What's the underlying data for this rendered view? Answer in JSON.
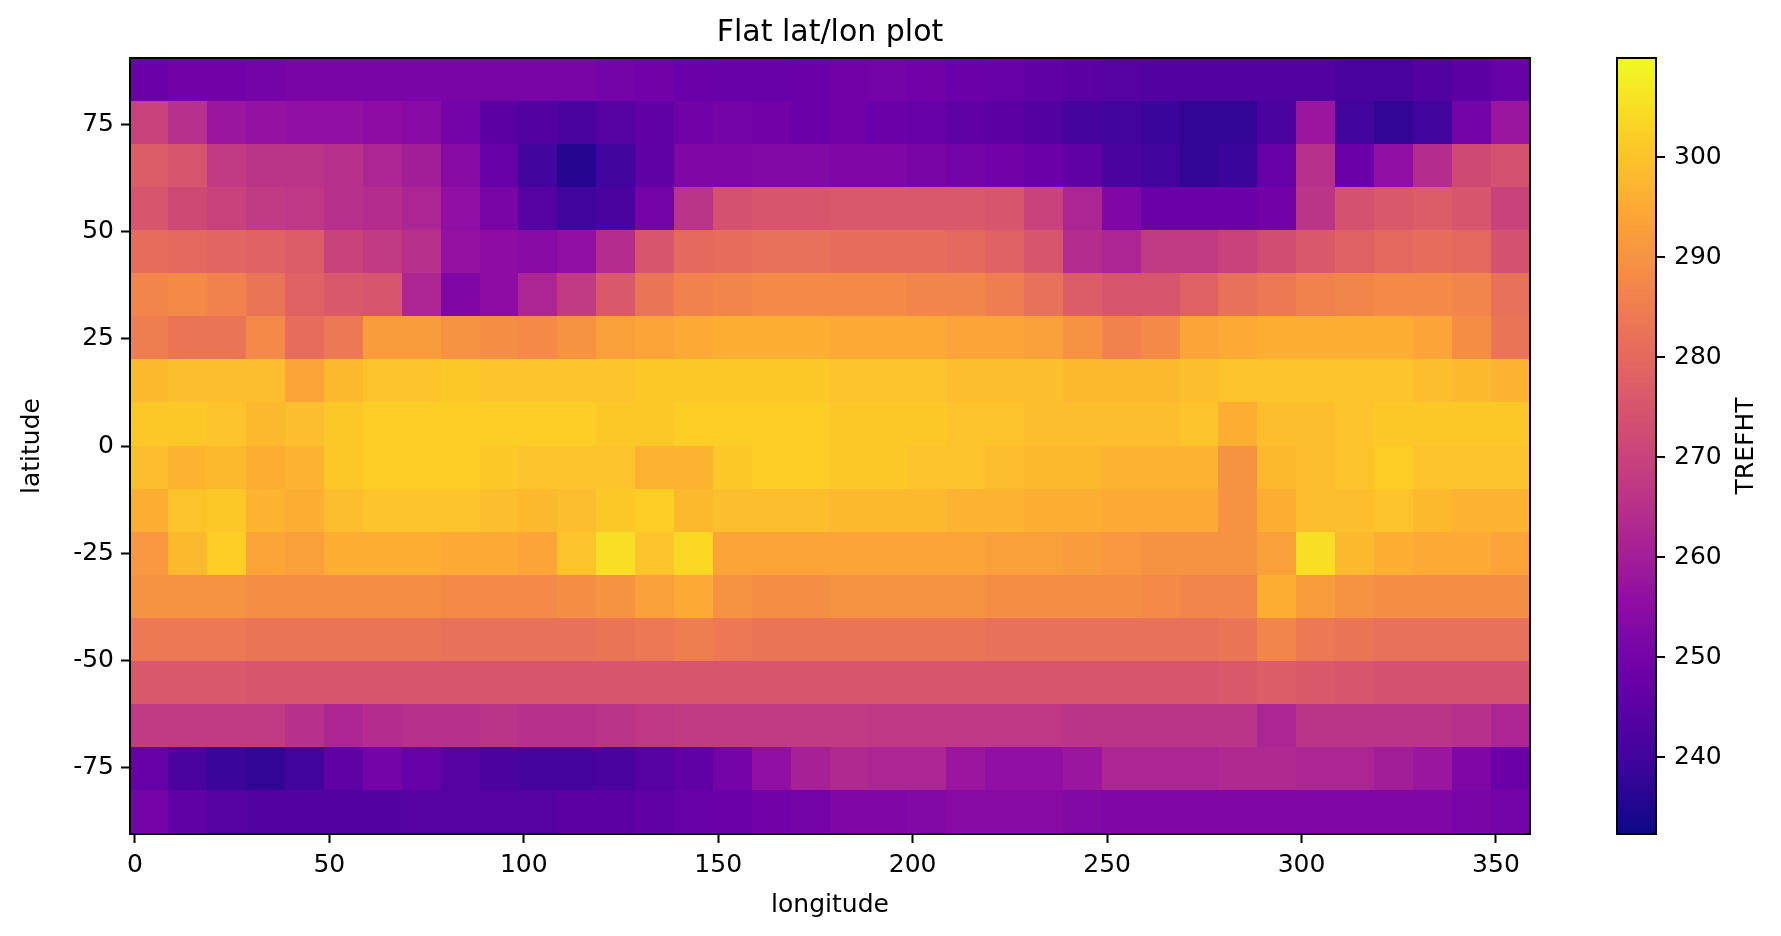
{
  "chart_data": {
    "type": "heatmap",
    "title": "Flat lat/lon plot",
    "xlabel": "longitude",
    "ylabel": "latitude",
    "clabel": "TREFHT",
    "cells": [
      [
        248,
        249,
        249,
        250,
        251,
        251,
        251,
        251,
        251,
        251,
        251,
        251,
        250,
        249,
        248,
        247,
        247,
        248,
        249,
        250,
        249,
        248,
        247,
        246,
        245,
        244,
        243,
        243,
        243,
        243,
        243,
        242,
        242,
        243,
        245,
        247
      ],
      [
        270,
        265,
        258,
        257,
        256,
        256,
        255,
        254,
        250,
        245,
        243,
        242,
        244,
        246,
        249,
        250,
        249,
        248,
        249,
        248,
        247,
        246,
        245,
        243,
        241,
        240,
        239,
        238,
        238,
        242,
        258,
        240,
        238,
        240,
        250,
        258
      ],
      [
        277,
        275,
        268,
        266,
        266,
        265,
        262,
        260,
        254,
        247,
        240,
        236,
        240,
        246,
        252,
        252,
        253,
        253,
        252,
        252,
        251,
        250,
        249,
        248,
        246,
        242,
        240,
        238,
        239,
        247,
        265,
        248,
        256,
        264,
        272,
        274
      ],
      [
        275,
        272,
        270,
        268,
        267,
        265,
        264,
        262,
        256,
        251,
        244,
        240,
        242,
        250,
        266,
        274,
        275,
        275,
        276,
        276,
        276,
        276,
        275,
        270,
        262,
        252,
        248,
        248,
        248,
        249,
        266,
        274,
        276,
        277,
        275,
        270
      ],
      [
        281,
        280,
        279,
        278,
        277,
        270,
        268,
        265,
        257,
        255,
        254,
        256,
        264,
        275,
        280,
        281,
        282,
        282,
        281,
        281,
        281,
        280,
        278,
        275,
        264,
        262,
        268,
        268,
        270,
        273,
        276,
        278,
        280,
        281,
        280,
        274
      ],
      [
        287,
        288,
        286,
        283,
        278,
        276,
        275,
        262,
        252,
        255,
        262,
        268,
        276,
        283,
        286,
        287,
        288,
        288,
        288,
        288,
        287,
        287,
        285,
        282,
        277,
        275,
        275,
        278,
        282,
        284,
        286,
        287,
        288,
        288,
        287,
        282
      ],
      [
        285,
        283,
        283,
        288,
        281,
        284,
        292,
        292,
        290,
        289,
        288,
        290,
        293,
        294,
        295,
        296,
        296,
        296,
        295,
        295,
        295,
        294,
        294,
        293,
        290,
        286,
        288,
        294,
        295,
        296,
        296,
        296,
        296,
        294,
        289,
        283
      ],
      [
        298,
        299,
        299,
        299,
        294,
        298,
        300,
        300,
        301,
        300,
        300,
        300,
        300,
        301,
        301,
        301,
        301,
        301,
        300,
        300,
        300,
        299,
        299,
        299,
        298,
        298,
        298,
        299,
        300,
        300,
        300,
        300,
        300,
        299,
        298,
        297
      ],
      [
        301,
        301,
        300,
        298,
        299,
        301,
        302,
        302,
        302,
        302,
        302,
        302,
        301,
        301,
        302,
        302,
        302,
        302,
        301,
        301,
        301,
        300,
        300,
        299,
        299,
        299,
        299,
        300,
        296,
        299,
        299,
        300,
        301,
        301,
        301,
        301
      ],
      [
        299,
        297,
        298,
        296,
        297,
        301,
        302,
        302,
        302,
        301,
        300,
        300,
        300,
        297,
        297,
        301,
        302,
        302,
        301,
        301,
        300,
        300,
        299,
        298,
        298,
        297,
        297,
        297,
        290,
        298,
        299,
        300,
        302,
        300,
        300,
        300
      ],
      [
        296,
        300,
        301,
        297,
        296,
        299,
        300,
        300,
        300,
        299,
        298,
        299,
        301,
        302,
        298,
        299,
        299,
        299,
        298,
        298,
        298,
        297,
        297,
        296,
        296,
        295,
        295,
        295,
        290,
        296,
        299,
        299,
        300,
        298,
        297,
        297
      ],
      [
        291,
        298,
        302,
        294,
        293,
        296,
        296,
        296,
        295,
        295,
        294,
        300,
        305,
        300,
        304,
        294,
        294,
        294,
        294,
        294,
        294,
        294,
        293,
        293,
        292,
        291,
        290,
        290,
        290,
        293,
        305,
        298,
        296,
        295,
        295,
        294
      ],
      [
        290,
        290,
        290,
        289,
        289,
        289,
        289,
        289,
        288,
        288,
        288,
        289,
        290,
        293,
        295,
        290,
        289,
        289,
        290,
        290,
        290,
        290,
        289,
        289,
        289,
        289,
        288,
        287,
        287,
        296,
        292,
        290,
        289,
        289,
        289,
        289
      ],
      [
        284,
        284,
        284,
        283,
        283,
        283,
        283,
        283,
        282,
        282,
        282,
        282,
        283,
        284,
        285,
        284,
        283,
        283,
        283,
        283,
        283,
        283,
        282,
        282,
        282,
        282,
        282,
        282,
        283,
        287,
        284,
        283,
        282,
        282,
        282,
        282
      ],
      [
        276,
        276,
        276,
        275,
        275,
        275,
        275,
        275,
        275,
        275,
        275,
        275,
        275,
        275,
        275,
        275,
        275,
        275,
        275,
        275,
        275,
        275,
        275,
        275,
        275,
        275,
        275,
        275,
        276,
        277,
        276,
        275,
        274,
        274,
        274,
        274
      ],
      [
        268,
        268,
        268,
        268,
        265,
        262,
        264,
        265,
        265,
        266,
        265,
        265,
        266,
        267,
        268,
        268,
        268,
        268,
        268,
        267,
        267,
        267,
        267,
        267,
        266,
        266,
        266,
        266,
        266,
        262,
        266,
        266,
        266,
        266,
        265,
        262
      ],
      [
        247,
        242,
        239,
        238,
        240,
        246,
        250,
        247,
        244,
        242,
        241,
        241,
        242,
        244,
        246,
        250,
        256,
        261,
        263,
        262,
        262,
        258,
        256,
        256,
        258,
        262,
        262,
        262,
        263,
        263,
        262,
        262,
        260,
        258,
        252,
        248
      ],
      [
        250,
        246,
        244,
        243,
        243,
        243,
        243,
        244,
        244,
        244,
        244,
        245,
        245,
        246,
        247,
        248,
        249,
        250,
        252,
        252,
        253,
        254,
        254,
        254,
        253,
        252,
        252,
        252,
        252,
        252,
        252,
        252,
        252,
        252,
        251,
        250
      ]
    ],
    "xlim": [
      -1.25,
      358.75
    ],
    "ylim": [
      -90.5,
      90.5
    ],
    "xticks": [
      0,
      50,
      100,
      150,
      200,
      250,
      300,
      350
    ],
    "yticks": [
      -75,
      -50,
      -25,
      0,
      25,
      50,
      75
    ],
    "clim": [
      232.3,
      309.9
    ],
    "cticks": [
      240,
      250,
      260,
      270,
      280,
      290,
      300
    ]
  }
}
